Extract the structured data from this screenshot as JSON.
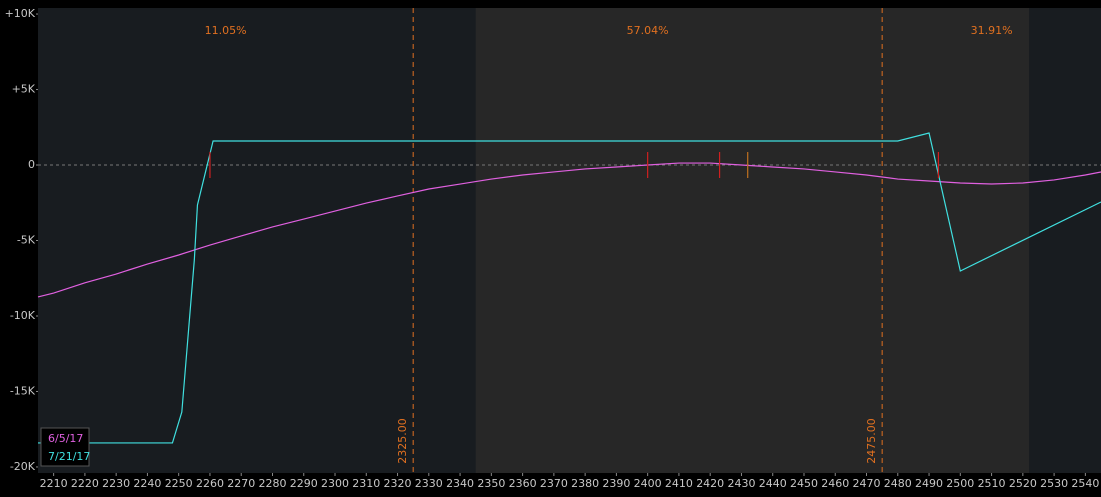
{
  "chart_data": {
    "type": "line",
    "xlim": [
      2205,
      2545
    ],
    "ylim": [
      -20400,
      10400
    ],
    "xticks": [
      2210,
      2220,
      2230,
      2240,
      2250,
      2260,
      2270,
      2280,
      2290,
      2300,
      2310,
      2320,
      2330,
      2340,
      2350,
      2360,
      2370,
      2380,
      2390,
      2400,
      2410,
      2420,
      2430,
      2440,
      2450,
      2460,
      2470,
      2480,
      2490,
      2500,
      2510,
      2520,
      2530,
      2540
    ],
    "yticks": [
      {
        "value": 10000,
        "label": "+10K"
      },
      {
        "value": 5000,
        "label": "+5K"
      },
      0,
      {
        "value": -5000,
        "label": "-5K"
      },
      {
        "value": -10000,
        "label": "-10K"
      },
      {
        "value": -15000,
        "label": "-15K"
      },
      {
        "value": -20000,
        "label": "-20K"
      }
    ],
    "zero_line": 0,
    "shaded_range": [
      2345,
      2522
    ],
    "vlines": [
      {
        "value": 2325,
        "label": "2325.00"
      },
      {
        "value": 2475,
        "label": "2475.00"
      }
    ],
    "annotations": [
      "11.05%",
      "57.04%",
      "31.91%"
    ],
    "markers": [
      {
        "x": 2260,
        "color": "#d02020"
      },
      {
        "x": 2400,
        "color": "#d02020"
      },
      {
        "x": 2423,
        "color": "#d02020"
      },
      {
        "x": 2432,
        "color": "#c07020"
      },
      {
        "x": 2493,
        "color": "#d02020"
      }
    ],
    "series": [
      {
        "name": "6/5/17",
        "color": "#e060e0",
        "x": [
          2205,
          2210,
          2220,
          2230,
          2240,
          2250,
          2260,
          2270,
          2280,
          2290,
          2300,
          2310,
          2320,
          2330,
          2340,
          2350,
          2360,
          2370,
          2380,
          2390,
          2400,
          2410,
          2420,
          2430,
          2440,
          2450,
          2460,
          2470,
          2480,
          2490,
          2500,
          2510,
          2520,
          2530,
          2540,
          2545
        ],
        "values": [
          -8740,
          -8480,
          -7800,
          -7220,
          -6560,
          -5960,
          -5300,
          -4700,
          -4100,
          -3580,
          -3050,
          -2520,
          -2050,
          -1590,
          -1260,
          -930,
          -660,
          -460,
          -260,
          -130,
          0,
          130,
          130,
          0,
          -130,
          -260,
          -460,
          -660,
          -930,
          -1060,
          -1190,
          -1260,
          -1190,
          -990,
          -660,
          -460
        ]
      },
      {
        "name": "7/21/17",
        "color": "#40e0e0",
        "x": [
          2205,
          2248,
          2251,
          2255,
          2256,
          2261,
          2480,
          2490,
          2500,
          2545
        ],
        "values": [
          -18410,
          -18410,
          -16360,
          -6290,
          -2650,
          1590,
          1590,
          2120,
          -7020,
          -2450
        ]
      }
    ]
  }
}
